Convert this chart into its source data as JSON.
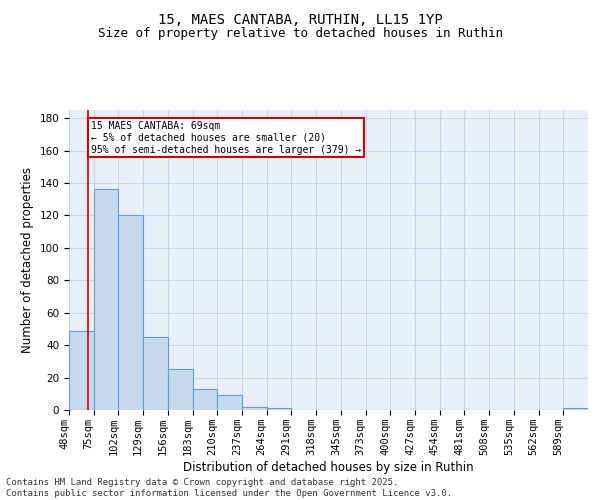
{
  "title1": "15, MAES CANTABA, RUTHIN, LL15 1YP",
  "title2": "Size of property relative to detached houses in Ruthin",
  "xlabel": "Distribution of detached houses by size in Ruthin",
  "ylabel": "Number of detached properties",
  "categories": [
    "48sqm",
    "75sqm",
    "102sqm",
    "129sqm",
    "156sqm",
    "183sqm",
    "210sqm",
    "237sqm",
    "264sqm",
    "291sqm",
    "318sqm",
    "345sqm",
    "373sqm",
    "400sqm",
    "427sqm",
    "454sqm",
    "481sqm",
    "508sqm",
    "535sqm",
    "562sqm",
    "589sqm"
  ],
  "values": [
    49,
    136,
    120,
    45,
    25,
    13,
    9,
    2,
    1,
    0,
    0,
    0,
    0,
    0,
    0,
    0,
    0,
    0,
    0,
    0,
    1
  ],
  "bar_color": "#c7d9ed",
  "bar_edge_color": "#5a9fd4",
  "ylim": [
    0,
    185
  ],
  "yticks": [
    0,
    20,
    40,
    60,
    80,
    100,
    120,
    140,
    160,
    180
  ],
  "grid_color": "#c8d4e8",
  "bg_color": "#e8eff8",
  "annotation_text": "15 MAES CANTABA: 69sqm\n← 5% of detached houses are smaller (20)\n95% of semi-detached houses are larger (379) →",
  "annotation_box_color": "#ffffff",
  "annotation_border_color": "#cc0000",
  "property_sqm": 69,
  "footer_line1": "Contains HM Land Registry data © Crown copyright and database right 2025.",
  "footer_line2": "Contains public sector information licensed under the Open Government Licence v3.0.",
  "title_fontsize": 10,
  "subtitle_fontsize": 9,
  "tick_fontsize": 7.5,
  "axis_label_fontsize": 8.5,
  "footer_fontsize": 6.5
}
